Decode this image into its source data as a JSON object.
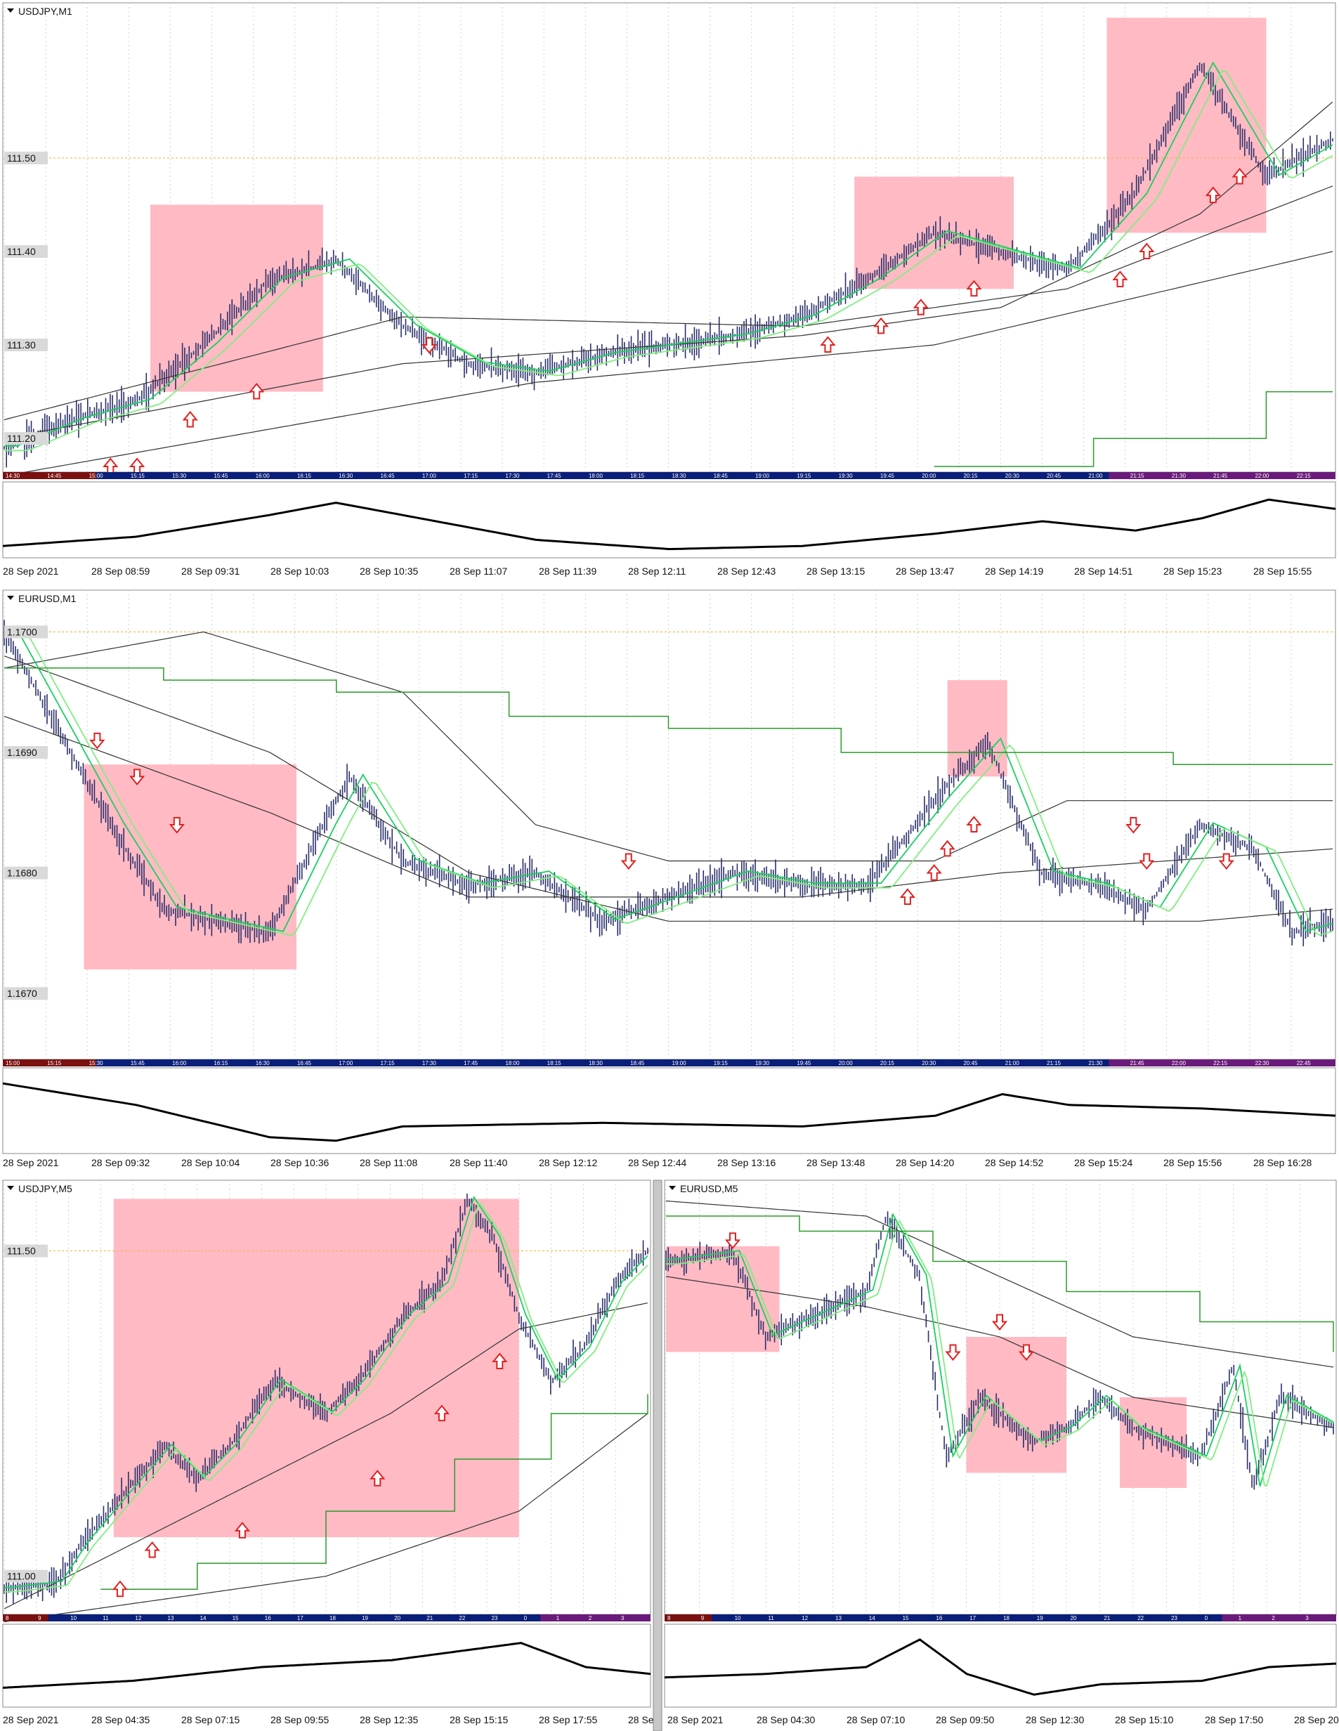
{
  "window_titles": [
    "USDJPY,M1",
    "EURUSD,M1",
    "USDJPY,M5",
    "EURUSD,M5"
  ],
  "colors": {
    "candle": "#2a2f6b",
    "ema_fast": "#18d060",
    "ema_slow": "#80ee80",
    "ma": "#333333",
    "green_line": "#2a9a2a",
    "box": "#ffb6c1",
    "arrow": "#e02020",
    "dotted": "#f0b030",
    "label_bg": "#d9d9d9"
  },
  "chart_data": [
    {
      "type": "candlestick",
      "title": "USDJPY,M1",
      "price_labels": [
        "111.50",
        "111.40",
        "111.30",
        "111.20"
      ],
      "ylim": [
        111.17,
        111.66
      ],
      "session_ticks": [
        "14:30",
        "14:45",
        "15:00",
        "15:15",
        "15:30",
        "15:45",
        "16:00",
        "16:15",
        "16:30",
        "16:45",
        "17:00",
        "17:15",
        "17:30",
        "17:45",
        "18:00",
        "18:15",
        "18:30",
        "18:45",
        "19:00",
        "19:15",
        "19:30",
        "19:45",
        "20:00",
        "20:15",
        "20:30",
        "20:45",
        "21:00",
        "21:15",
        "21:30",
        "21:45",
        "22:00",
        "22:15"
      ],
      "x_labels": [
        "28 Sep 2021",
        "28 Sep 08:59",
        "28 Sep 09:31",
        "28 Sep 10:03",
        "28 Sep 10:35",
        "28 Sep 11:07",
        "28 Sep 11:39",
        "28 Sep 12:11",
        "28 Sep 12:43",
        "28 Sep 13:15",
        "28 Sep 13:47",
        "28 Sep 14:19",
        "28 Sep 14:51",
        "28 Sep 15:23",
        "28 Sep 15:55"
      ],
      "close_points": [
        [
          0,
          111.19
        ],
        [
          0.05,
          111.22
        ],
        [
          0.1,
          111.24
        ],
        [
          0.15,
          111.3
        ],
        [
          0.2,
          111.37
        ],
        [
          0.25,
          111.39
        ],
        [
          0.3,
          111.32
        ],
        [
          0.35,
          111.28
        ],
        [
          0.4,
          111.27
        ],
        [
          0.45,
          111.29
        ],
        [
          0.5,
          111.3
        ],
        [
          0.55,
          111.31
        ],
        [
          0.6,
          111.33
        ],
        [
          0.65,
          111.37
        ],
        [
          0.7,
          111.42
        ],
        [
          0.75,
          111.4
        ],
        [
          0.8,
          111.38
        ],
        [
          0.85,
          111.46
        ],
        [
          0.9,
          111.6
        ],
        [
          0.95,
          111.48
        ],
        [
          1,
          111.52
        ]
      ],
      "moving_averages": [
        [
          [
            0,
            111.2
          ],
          [
            0.3,
            111.28
          ],
          [
            0.6,
            111.31
          ],
          [
            0.75,
            111.34
          ],
          [
            0.9,
            111.44
          ],
          [
            1,
            111.56
          ]
        ],
        [
          [
            0,
            111.16
          ],
          [
            0.4,
            111.26
          ],
          [
            0.7,
            111.3
          ],
          [
            1,
            111.4
          ]
        ],
        [
          [
            0,
            111.22
          ],
          [
            0.3,
            111.33
          ],
          [
            0.6,
            111.32
          ],
          [
            0.8,
            111.36
          ],
          [
            1,
            111.47
          ]
        ]
      ],
      "boxes": [
        [
          0.11,
          0.24,
          111.25,
          111.45
        ],
        [
          0.64,
          0.76,
          111.36,
          111.48
        ],
        [
          0.83,
          0.95,
          111.42,
          111.65
        ]
      ],
      "arrows_up": [
        [
          0.08,
          111.17
        ],
        [
          0.1,
          111.17
        ],
        [
          0.14,
          111.22
        ],
        [
          0.19,
          111.25
        ],
        [
          0.62,
          111.3
        ],
        [
          0.66,
          111.32
        ],
        [
          0.69,
          111.34
        ],
        [
          0.73,
          111.36
        ],
        [
          0.84,
          111.37
        ],
        [
          0.86,
          111.4
        ],
        [
          0.91,
          111.46
        ],
        [
          0.93,
          111.48
        ]
      ],
      "arrows_down": [
        [
          0.32,
          111.3
        ]
      ],
      "oscillator": [
        [
          0,
          0.1
        ],
        [
          0.1,
          0.25
        ],
        [
          0.2,
          0.6
        ],
        [
          0.25,
          0.8
        ],
        [
          0.3,
          0.6
        ],
        [
          0.4,
          0.2
        ],
        [
          0.5,
          0.05
        ],
        [
          0.6,
          0.1
        ],
        [
          0.7,
          0.3
        ],
        [
          0.78,
          0.5
        ],
        [
          0.85,
          0.35
        ],
        [
          0.9,
          0.55
        ],
        [
          0.95,
          0.85
        ],
        [
          1,
          0.7
        ]
      ],
      "green_step": [
        [
          0.7,
          111.17
        ],
        [
          0.82,
          111.17
        ],
        [
          0.82,
          111.2
        ],
        [
          0.95,
          111.2
        ],
        [
          0.95,
          111.25
        ],
        [
          1,
          111.25
        ]
      ]
    },
    {
      "type": "candlestick",
      "title": "EURUSD,M1",
      "price_labels": [
        "1.1700",
        "1.1690",
        "1.1680",
        "1.1670"
      ],
      "ylim": [
        1.1665,
        1.1703
      ],
      "session_ticks": [
        "15:00",
        "15:15",
        "15:30",
        "15:45",
        "16:00",
        "16:15",
        "16:30",
        "16:45",
        "17:00",
        "17:15",
        "17:30",
        "17:45",
        "18:00",
        "18:15",
        "18:30",
        "18:45",
        "19:00",
        "19:15",
        "19:30",
        "19:45",
        "20:00",
        "20:15",
        "20:30",
        "20:45",
        "21:00",
        "21:15",
        "21:30",
        "21:45",
        "22:00",
        "22:15",
        "22:30",
        "22:45"
      ],
      "x_labels": [
        "28 Sep 2021",
        "28 Sep 09:32",
        "28 Sep 10:04",
        "28 Sep 10:36",
        "28 Sep 11:08",
        "28 Sep 11:40",
        "28 Sep 12:12",
        "28 Sep 12:44",
        "28 Sep 13:16",
        "28 Sep 13:48",
        "28 Sep 14:20",
        "28 Sep 14:52",
        "28 Sep 15:24",
        "28 Sep 15:56",
        "28 Sep 16:28"
      ],
      "close_points": [
        [
          0,
          1.17
        ],
        [
          0.04,
          1.1692
        ],
        [
          0.08,
          1.1684
        ],
        [
          0.12,
          1.1677
        ],
        [
          0.16,
          1.1676
        ],
        [
          0.2,
          1.1675
        ],
        [
          0.24,
          1.1684
        ],
        [
          0.26,
          1.1688
        ],
        [
          0.3,
          1.1681
        ],
        [
          0.35,
          1.1679
        ],
        [
          0.4,
          1.168
        ],
        [
          0.45,
          1.1676
        ],
        [
          0.5,
          1.1678
        ],
        [
          0.55,
          1.168
        ],
        [
          0.6,
          1.1679
        ],
        [
          0.65,
          1.1679
        ],
        [
          0.7,
          1.1686
        ],
        [
          0.74,
          1.1691
        ],
        [
          0.78,
          1.168
        ],
        [
          0.82,
          1.1679
        ],
        [
          0.86,
          1.1677
        ],
        [
          0.9,
          1.1684
        ],
        [
          0.94,
          1.1682
        ],
        [
          0.97,
          1.1675
        ],
        [
          1,
          1.1676
        ]
      ],
      "moving_averages": [
        [
          [
            0,
            1.1697
          ],
          [
            0.15,
            1.17
          ],
          [
            0.3,
            1.1695
          ],
          [
            0.4,
            1.1684
          ],
          [
            0.5,
            1.1681
          ],
          [
            0.7,
            1.1681
          ],
          [
            0.8,
            1.1686
          ],
          [
            1,
            1.1686
          ]
        ],
        [
          [
            0,
            1.1693
          ],
          [
            0.2,
            1.1685
          ],
          [
            0.35,
            1.1678
          ],
          [
            0.6,
            1.1678
          ],
          [
            0.75,
            1.168
          ],
          [
            1,
            1.1682
          ]
        ],
        [
          [
            0,
            1.1698
          ],
          [
            0.2,
            1.169
          ],
          [
            0.35,
            1.168
          ],
          [
            0.5,
            1.1676
          ],
          [
            0.75,
            1.1676
          ],
          [
            0.9,
            1.1676
          ],
          [
            1,
            1.1677
          ]
        ]
      ],
      "boxes": [
        [
          0.06,
          0.22,
          1.1672,
          1.1689
        ],
        [
          0.71,
          0.755,
          1.1688,
          1.1696
        ]
      ],
      "arrows_up": [
        [
          0.68,
          1.1678
        ],
        [
          0.7,
          1.168
        ],
        [
          0.71,
          1.1682
        ],
        [
          0.73,
          1.1684
        ]
      ],
      "arrows_down": [
        [
          0.07,
          1.1691
        ],
        [
          0.1,
          1.1688
        ],
        [
          0.13,
          1.1684
        ],
        [
          0.47,
          1.1681
        ],
        [
          0.85,
          1.1684
        ],
        [
          0.86,
          1.1681
        ],
        [
          0.92,
          1.1681
        ]
      ],
      "oscillator": [
        [
          0,
          0.9
        ],
        [
          0.1,
          0.6
        ],
        [
          0.2,
          0.15
        ],
        [
          0.25,
          0.1
        ],
        [
          0.3,
          0.3
        ],
        [
          0.45,
          0.35
        ],
        [
          0.6,
          0.3
        ],
        [
          0.7,
          0.45
        ],
        [
          0.75,
          0.75
        ],
        [
          0.8,
          0.6
        ],
        [
          0.9,
          0.55
        ],
        [
          1,
          0.45
        ]
      ],
      "green_step": [
        [
          0,
          1.1697
        ],
        [
          0.12,
          1.1697
        ],
        [
          0.12,
          1.1696
        ],
        [
          0.25,
          1.1696
        ],
        [
          0.25,
          1.1695
        ],
        [
          0.38,
          1.1695
        ],
        [
          0.38,
          1.1693
        ],
        [
          0.5,
          1.1693
        ],
        [
          0.5,
          1.1692
        ],
        [
          0.63,
          1.1692
        ],
        [
          0.63,
          1.169
        ],
        [
          0.88,
          1.169
        ],
        [
          0.88,
          1.1689
        ],
        [
          1,
          1.1689
        ]
      ]
    },
    {
      "type": "candlestick",
      "title": "USDJPY,M5",
      "price_labels": [
        "111.50",
        "111.00"
      ],
      "ylim": [
        110.95,
        111.6
      ],
      "session_ticks": [
        "8",
        "9",
        "10",
        "11",
        "12",
        "13",
        "14",
        "15",
        "16",
        "17",
        "18",
        "19",
        "20",
        "21",
        "22",
        "23",
        "0",
        "1",
        "2",
        "3"
      ],
      "x_labels": [
        "28 Sep 2021",
        "28 Sep 04:35",
        "28 Sep 07:15",
        "28 Sep 09:55",
        "28 Sep 12:35",
        "28 Sep 15:15",
        "28 Sep 17:55",
        "28 Se"
      ],
      "close_points": [
        [
          0,
          110.98
        ],
        [
          0.08,
          110.99
        ],
        [
          0.12,
          111.05
        ],
        [
          0.18,
          111.12
        ],
        [
          0.25,
          111.2
        ],
        [
          0.3,
          111.15
        ],
        [
          0.35,
          111.2
        ],
        [
          0.42,
          111.3
        ],
        [
          0.5,
          111.25
        ],
        [
          0.55,
          111.3
        ],
        [
          0.62,
          111.4
        ],
        [
          0.68,
          111.45
        ],
        [
          0.72,
          111.58
        ],
        [
          0.76,
          111.52
        ],
        [
          0.8,
          111.4
        ],
        [
          0.85,
          111.3
        ],
        [
          0.9,
          111.35
        ],
        [
          0.95,
          111.45
        ],
        [
          1,
          111.5
        ]
      ],
      "moving_averages": [
        [
          [
            0,
            110.95
          ],
          [
            0.3,
            111.1
          ],
          [
            0.6,
            111.25
          ],
          [
            0.8,
            111.38
          ],
          [
            1,
            111.42
          ]
        ],
        [
          [
            0,
            110.93
          ],
          [
            0.5,
            111.0
          ],
          [
            0.8,
            111.1
          ],
          [
            1,
            111.25
          ]
        ]
      ],
      "boxes": [
        [
          0.17,
          0.8,
          111.06,
          111.58
        ]
      ],
      "arrows_up": [
        [
          0.18,
          110.98
        ],
        [
          0.23,
          111.04
        ],
        [
          0.37,
          111.07
        ],
        [
          0.58,
          111.15
        ],
        [
          0.68,
          111.25
        ],
        [
          0.77,
          111.33
        ]
      ],
      "arrows_down": [],
      "oscillator": [
        [
          0,
          0.2
        ],
        [
          0.2,
          0.3
        ],
        [
          0.4,
          0.5
        ],
        [
          0.6,
          0.6
        ],
        [
          0.8,
          0.85
        ],
        [
          0.9,
          0.5
        ],
        [
          1,
          0.4
        ]
      ],
      "green_step": [
        [
          0.15,
          110.98
        ],
        [
          0.3,
          111.02
        ],
        [
          0.5,
          111.1
        ],
        [
          0.7,
          111.18
        ],
        [
          0.85,
          111.25
        ],
        [
          1,
          111.28
        ]
      ]
    },
    {
      "type": "candlestick",
      "title": "EURUSD,M5",
      "price_labels": [],
      "ylim": [
        1.158,
        1.172
      ],
      "session_ticks": [
        "8",
        "9",
        "10",
        "11",
        "12",
        "13",
        "14",
        "15",
        "16",
        "17",
        "18",
        "19",
        "20",
        "21",
        "22",
        "23",
        "0",
        "1",
        "2",
        "3"
      ],
      "x_labels": [
        "28 Sep 2021",
        "28 Sep 04:30",
        "28 Sep 07:10",
        "28 Sep 09:50",
        "28 Sep 12:30",
        "28 Sep 15:10",
        "28 Sep 17:50",
        "28 Sep 20"
      ],
      "close_points": [
        [
          0,
          1.1695
        ],
        [
          0.1,
          1.1698
        ],
        [
          0.15,
          1.167
        ],
        [
          0.2,
          1.1675
        ],
        [
          0.25,
          1.168
        ],
        [
          0.3,
          1.1685
        ],
        [
          0.33,
          1.171
        ],
        [
          0.38,
          1.169
        ],
        [
          0.42,
          1.163
        ],
        [
          0.47,
          1.165
        ],
        [
          0.55,
          1.1635
        ],
        [
          0.6,
          1.164
        ],
        [
          0.65,
          1.165
        ],
        [
          0.7,
          1.164
        ],
        [
          0.75,
          1.1635
        ],
        [
          0.8,
          1.163
        ],
        [
          0.85,
          1.166
        ],
        [
          0.88,
          1.162
        ],
        [
          0.92,
          1.165
        ],
        [
          0.96,
          1.1645
        ],
        [
          1,
          1.164
        ]
      ],
      "moving_averages": [
        [
          [
            0,
            1.1715
          ],
          [
            0.3,
            1.171
          ],
          [
            0.5,
            1.169
          ],
          [
            0.7,
            1.167
          ],
          [
            1,
            1.166
          ]
        ],
        [
          [
            0,
            1.169
          ],
          [
            0.3,
            1.168
          ],
          [
            0.5,
            1.167
          ],
          [
            0.7,
            1.165
          ],
          [
            1,
            1.164
          ]
        ]
      ],
      "boxes": [
        [
          0.0,
          0.17,
          1.1665,
          1.17
        ],
        [
          0.45,
          0.6,
          1.1625,
          1.167
        ],
        [
          0.68,
          0.78,
          1.162,
          1.165
        ]
      ],
      "arrows_up": [],
      "arrows_down": [
        [
          0.1,
          1.1702
        ],
        [
          0.43,
          1.1665
        ],
        [
          0.5,
          1.1675
        ],
        [
          0.54,
          1.1665
        ]
      ],
      "oscillator": [
        [
          0,
          0.35
        ],
        [
          0.15,
          0.4
        ],
        [
          0.3,
          0.5
        ],
        [
          0.38,
          0.9
        ],
        [
          0.45,
          0.4
        ],
        [
          0.55,
          0.1
        ],
        [
          0.65,
          0.25
        ],
        [
          0.8,
          0.3
        ],
        [
          0.9,
          0.5
        ],
        [
          1,
          0.55
        ]
      ],
      "green_step": [
        [
          0,
          1.171
        ],
        [
          0.2,
          1.1705
        ],
        [
          0.4,
          1.1695
        ],
        [
          0.6,
          1.1685
        ],
        [
          0.8,
          1.1675
        ],
        [
          1,
          1.1665
        ]
      ]
    }
  ]
}
